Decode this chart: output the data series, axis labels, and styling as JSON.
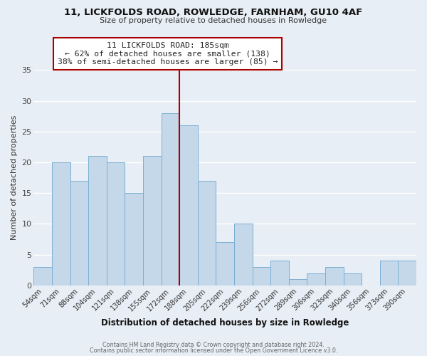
{
  "title1": "11, LICKFOLDS ROAD, ROWLEDGE, FARNHAM, GU10 4AF",
  "title2": "Size of property relative to detached houses in Rowledge",
  "xlabel": "Distribution of detached houses by size in Rowledge",
  "ylabel": "Number of detached properties",
  "bar_labels": [
    "54sqm",
    "71sqm",
    "88sqm",
    "104sqm",
    "121sqm",
    "138sqm",
    "155sqm",
    "172sqm",
    "188sqm",
    "205sqm",
    "222sqm",
    "239sqm",
    "256sqm",
    "272sqm",
    "289sqm",
    "306sqm",
    "323sqm",
    "340sqm",
    "356sqm",
    "373sqm",
    "390sqm"
  ],
  "bar_values": [
    3,
    20,
    17,
    21,
    20,
    15,
    21,
    28,
    26,
    17,
    7,
    10,
    3,
    4,
    1,
    2,
    3,
    2,
    0,
    4,
    4
  ],
  "bar_color": "#c5d8ea",
  "bar_edgecolor": "#7bafd4",
  "bg_color": "#e8eef5",
  "grid_color": "#ffffff",
  "vline_color": "#aa0000",
  "annotation_title": "11 LICKFOLDS ROAD: 185sqm",
  "annotation_line1": "← 62% of detached houses are smaller (138)",
  "annotation_line2": "38% of semi-detached houses are larger (85) →",
  "annotation_box_edgecolor": "#aa0000",
  "ylim": [
    0,
    35
  ],
  "yticks": [
    0,
    5,
    10,
    15,
    20,
    25,
    30,
    35
  ],
  "footer1": "Contains HM Land Registry data © Crown copyright and database right 2024.",
  "footer2": "Contains public sector information licensed under the Open Government Licence v3.0.",
  "vline_bar_index": 7
}
